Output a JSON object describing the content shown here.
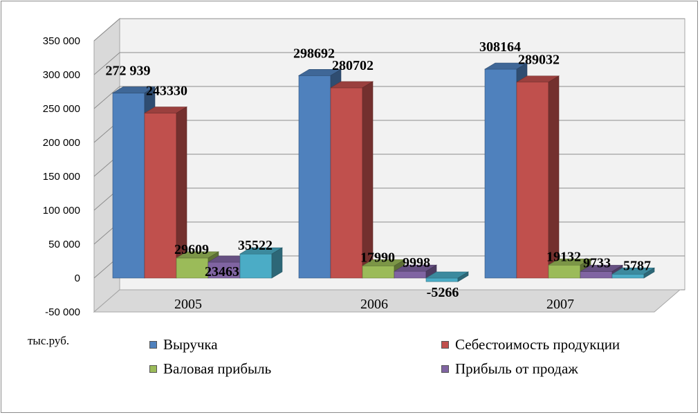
{
  "chart_data": {
    "type": "bar",
    "categories": [
      "2005",
      "2006",
      "2007"
    ],
    "series": [
      {
        "name": "Выручка",
        "color": "#4f81bd",
        "values": [
          272939,
          298692,
          308164
        ],
        "labels": [
          "272 939",
          "298692",
          "308164"
        ]
      },
      {
        "name": "Себестоимость продукции",
        "color": "#c0504d",
        "values": [
          243330,
          280702,
          289032
        ],
        "labels": [
          "243330",
          "280702",
          "289032"
        ]
      },
      {
        "name": "Валовая прибыль",
        "color": "#9bbb59",
        "values": [
          29609,
          17990,
          19132
        ],
        "labels": [
          "29609",
          "17990",
          "19132"
        ]
      },
      {
        "name": "Прибыль от продаж",
        "color": "#8064a2",
        "values": [
          23463,
          9998,
          9733
        ],
        "labels": [
          "23463",
          "9998",
          "9733"
        ]
      },
      {
        "color": "#4bacc6",
        "values": [
          35522,
          -5266,
          5787
        ],
        "labels": [
          "35522",
          "-5266",
          "5787"
        ]
      }
    ],
    "y_ticks": [
      "350 000",
      "300 000",
      "250 000",
      "200 000",
      "150 000",
      "100 000",
      "50 000",
      "0",
      "-50 000"
    ],
    "ylim": [
      -50000,
      350000
    ],
    "ylabel": "тыс.руб.",
    "grid": true,
    "three_d": true,
    "legend_position": "bottom"
  }
}
